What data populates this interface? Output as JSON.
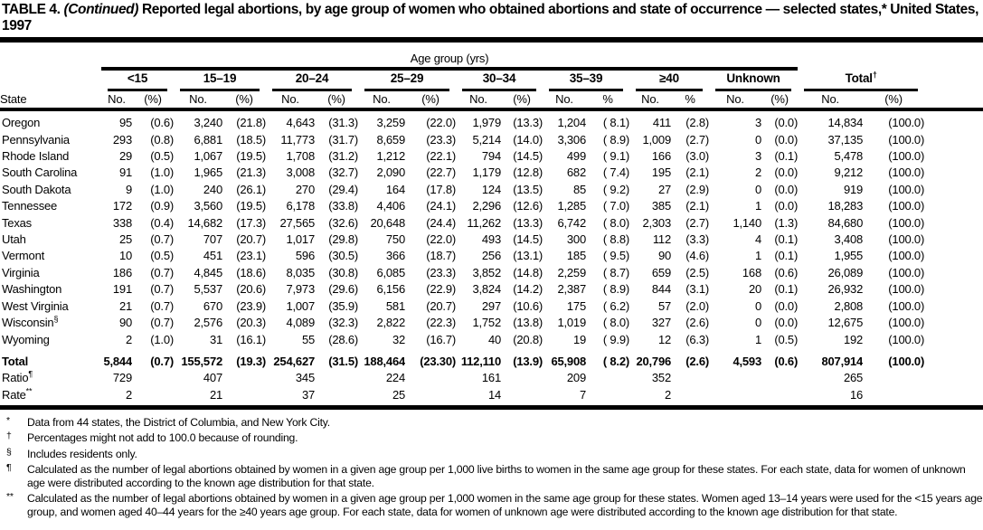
{
  "title": {
    "prefix": "TABLE 4.",
    "continued": "(Continued)",
    "rest": "Reported legal abortions, by age group of women who obtained abortions and state of occurrence — selected states,* United States, 1997"
  },
  "table": {
    "age_spanner": "Age group (yrs)",
    "state_header": "State",
    "groups": [
      {
        "label": "<15",
        "sub": [
          "No.",
          "(%)"
        ]
      },
      {
        "label": "15–19",
        "sub": [
          "No.",
          "(%)"
        ]
      },
      {
        "label": "20–24",
        "sub": [
          "No.",
          "(%)"
        ]
      },
      {
        "label": "25–29",
        "sub": [
          "No.",
          "(%)"
        ]
      },
      {
        "label": "30–34",
        "sub": [
          "No.",
          "(%)"
        ]
      },
      {
        "label": "35–39",
        "sub": [
          "No.",
          "%"
        ]
      },
      {
        "label": "≥40",
        "sub": [
          "No.",
          "%"
        ]
      },
      {
        "label": "Unknown",
        "sub": [
          "No.",
          "(%)"
        ]
      },
      {
        "label": "Total",
        "sup": "†",
        "sub": [
          "No.",
          "(%)"
        ]
      }
    ],
    "rows": [
      {
        "state": "Oregon",
        "cells": [
          "95",
          "(0.6)",
          "3,240",
          "(21.8)",
          "4,643",
          "(31.3)",
          "3,259",
          "(22.0)",
          "1,979",
          "(13.3)",
          "1,204",
          "( 8.1)",
          "411",
          "(2.8)",
          "3",
          "(0.0)",
          "14,834",
          "(100.0)"
        ]
      },
      {
        "state": "Pennsylvania",
        "cells": [
          "293",
          "(0.8)",
          "6,881",
          "(18.5)",
          "11,773",
          "(31.7)",
          "8,659",
          "(23.3)",
          "5,214",
          "(14.0)",
          "3,306",
          "( 8.9)",
          "1,009",
          "(2.7)",
          "0",
          "(0.0)",
          "37,135",
          "(100.0)"
        ]
      },
      {
        "state": "Rhode Island",
        "cells": [
          "29",
          "(0.5)",
          "1,067",
          "(19.5)",
          "1,708",
          "(31.2)",
          "1,212",
          "(22.1)",
          "794",
          "(14.5)",
          "499",
          "( 9.1)",
          "166",
          "(3.0)",
          "3",
          "(0.1)",
          "5,478",
          "(100.0)"
        ]
      },
      {
        "state": "South Carolina",
        "cells": [
          "91",
          "(1.0)",
          "1,965",
          "(21.3)",
          "3,008",
          "(32.7)",
          "2,090",
          "(22.7)",
          "1,179",
          "(12.8)",
          "682",
          "( 7.4)",
          "195",
          "(2.1)",
          "2",
          "(0.0)",
          "9,212",
          "(100.0)"
        ]
      },
      {
        "state": "South Dakota",
        "cells": [
          "9",
          "(1.0)",
          "240",
          "(26.1)",
          "270",
          "(29.4)",
          "164",
          "(17.8)",
          "124",
          "(13.5)",
          "85",
          "( 9.2)",
          "27",
          "(2.9)",
          "0",
          "(0.0)",
          "919",
          "(100.0)"
        ]
      },
      {
        "state": "Tennessee",
        "cells": [
          "172",
          "(0.9)",
          "3,560",
          "(19.5)",
          "6,178",
          "(33.8)",
          "4,406",
          "(24.1)",
          "2,296",
          "(12.6)",
          "1,285",
          "( 7.0)",
          "385",
          "(2.1)",
          "1",
          "(0.0)",
          "18,283",
          "(100.0)"
        ]
      },
      {
        "state": "Texas",
        "cells": [
          "338",
          "(0.4)",
          "14,682",
          "(17.3)",
          "27,565",
          "(32.6)",
          "20,648",
          "(24.4)",
          "11,262",
          "(13.3)",
          "6,742",
          "( 8.0)",
          "2,303",
          "(2.7)",
          "1,140",
          "(1.3)",
          "84,680",
          "(100.0)"
        ]
      },
      {
        "state": "Utah",
        "cells": [
          "25",
          "(0.7)",
          "707",
          "(20.7)",
          "1,017",
          "(29.8)",
          "750",
          "(22.0)",
          "493",
          "(14.5)",
          "300",
          "( 8.8)",
          "112",
          "(3.3)",
          "4",
          "(0.1)",
          "3,408",
          "(100.0)"
        ]
      },
      {
        "state": "Vermont",
        "cells": [
          "10",
          "(0.5)",
          "451",
          "(23.1)",
          "596",
          "(30.5)",
          "366",
          "(18.7)",
          "256",
          "(13.1)",
          "185",
          "( 9.5)",
          "90",
          "(4.6)",
          "1",
          "(0.1)",
          "1,955",
          "(100.0)"
        ]
      },
      {
        "state": "Virginia",
        "cells": [
          "186",
          "(0.7)",
          "4,845",
          "(18.6)",
          "8,035",
          "(30.8)",
          "6,085",
          "(23.3)",
          "3,852",
          "(14.8)",
          "2,259",
          "( 8.7)",
          "659",
          "(2.5)",
          "168",
          "(0.6)",
          "26,089",
          "(100.0)"
        ]
      },
      {
        "state": "Washington",
        "cells": [
          "191",
          "(0.7)",
          "5,537",
          "(20.6)",
          "7,973",
          "(29.6)",
          "6,156",
          "(22.9)",
          "3,824",
          "(14.2)",
          "2,387",
          "( 8.9)",
          "844",
          "(3.1)",
          "20",
          "(0.1)",
          "26,932",
          "(100.0)"
        ]
      },
      {
        "state": "West Virginia",
        "cells": [
          "21",
          "(0.7)",
          "670",
          "(23.9)",
          "1,007",
          "(35.9)",
          "581",
          "(20.7)",
          "297",
          "(10.6)",
          "175",
          "( 6.2)",
          "57",
          "(2.0)",
          "0",
          "(0.0)",
          "2,808",
          "(100.0)"
        ]
      },
      {
        "state": "Wisconsin",
        "sup": "§",
        "cells": [
          "90",
          "(0.7)",
          "2,576",
          "(20.3)",
          "4,089",
          "(32.3)",
          "2,822",
          "(22.3)",
          "1,752",
          "(13.8)",
          "1,019",
          "( 8.0)",
          "327",
          "(2.6)",
          "0",
          "(0.0)",
          "12,675",
          "(100.0)"
        ]
      },
      {
        "state": "Wyoming",
        "cells": [
          "2",
          "(1.0)",
          "31",
          "(16.1)",
          "55",
          "(28.6)",
          "32",
          "(16.7)",
          "40",
          "(20.8)",
          "19",
          "( 9.9)",
          "12",
          "(6.3)",
          "1",
          "(0.5)",
          "192",
          "(100.0)"
        ]
      }
    ],
    "summary_rows": [
      {
        "state": "Total",
        "style": "total",
        "cells": [
          "5,844",
          "(0.7)",
          "155,572",
          "(19.3)",
          "254,627",
          "(31.5)",
          "188,464",
          "(23.30)",
          "112,110",
          "(13.9)",
          "65,908",
          "( 8.2)",
          "20,796",
          "(2.6)",
          "4,593",
          "(0.6)",
          "807,914",
          "(100.0)"
        ]
      },
      {
        "state": "Ratio",
        "sup": "¶",
        "style": "plain",
        "cells": [
          "729",
          "",
          "407",
          "",
          "345",
          "",
          "224",
          "",
          "161",
          "",
          "209",
          "",
          "352",
          "",
          "",
          "",
          "265",
          ""
        ]
      },
      {
        "state": "Rate",
        "sup": "**",
        "style": "plain",
        "cells": [
          "2",
          "",
          "21",
          "",
          "37",
          "",
          "25",
          "",
          "14",
          "",
          "7",
          "",
          "2",
          "",
          "",
          "",
          "16",
          ""
        ]
      }
    ]
  },
  "footnotes": [
    {
      "marker": "*",
      "text": "Data from 44 states, the District of Columbia, and New York City."
    },
    {
      "marker": "†",
      "text": "Percentages might not add to 100.0 because of rounding."
    },
    {
      "marker": "§",
      "text": "Includes residents only."
    },
    {
      "marker": "¶",
      "text": "Calculated as the number of legal abortions obtained by women in a given age group per 1,000 live births to women in the same age group for these states. For each state, data for women of unknown age were distributed according to the known age distribution for that state."
    },
    {
      "marker": "**",
      "text": "Calculated as the number of legal abortions obtained by women in a given age group per 1,000 women in the same age group for these states. Women aged 13–14 years were used for the <15 years age group, and women aged 40–44 years for the ≥40 years age group. For each state, data for women of unknown age were distributed according to the known age distribution for that state."
    }
  ]
}
